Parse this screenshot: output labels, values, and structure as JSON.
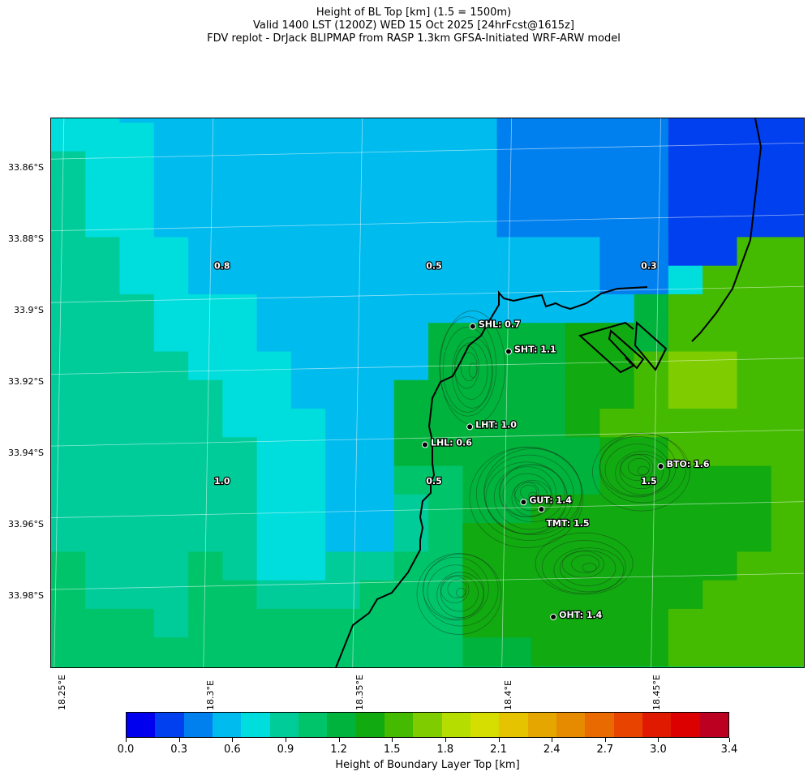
{
  "title": {
    "line1": "Height of BL Top [km] (1.5 = 1500m)",
    "line2": "Valid 1400 LST (1200Z) WED 15 Oct 2025 [24hrFcst@1615z]",
    "line3": "FDV replot - DrJack BLIPMAP from RASP 1.3km GFSA-Initiated WRF-ARW model"
  },
  "map": {
    "lat_labels": [
      "33.86°S",
      "33.88°S",
      "33.9°S",
      "33.92°S",
      "33.94°S",
      "33.96°S",
      "33.98°S"
    ],
    "lon_labels": [
      "18.25°E",
      "18.3°E",
      "18.35°E",
      "18.4°E",
      "18.45°E"
    ],
    "grid_values_km": [
      [
        0.8,
        0.8,
        0.6,
        0.6,
        0.6,
        0.6,
        0.6,
        0.6,
        0.5,
        0.5,
        0.5,
        0.5,
        0.5,
        0.4,
        0.4,
        0.4,
        0.4,
        0.4,
        0.2,
        0.2,
        0.2,
        0.2
      ],
      [
        0.8,
        0.8,
        0.8,
        0.6,
        0.6,
        0.6,
        0.6,
        0.6,
        0.5,
        0.5,
        0.5,
        0.5,
        0.5,
        0.4,
        0.4,
        0.4,
        0.4,
        0.4,
        0.2,
        0.2,
        0.2,
        0.2
      ],
      [
        0.9,
        0.8,
        0.8,
        0.6,
        0.6,
        0.6,
        0.6,
        0.6,
        0.5,
        0.5,
        0.5,
        0.5,
        0.5,
        0.4,
        0.4,
        0.4,
        0.4,
        0.4,
        0.2,
        0.2,
        0.2,
        0.2
      ],
      [
        0.9,
        0.8,
        0.8,
        0.6,
        0.6,
        0.6,
        0.6,
        0.6,
        0.5,
        0.5,
        0.5,
        0.5,
        0.5,
        0.4,
        0.4,
        0.4,
        0.4,
        0.4,
        0.2,
        0.2,
        0.2,
        0.2
      ],
      [
        0.9,
        0.8,
        0.8,
        0.6,
        0.6,
        0.6,
        0.6,
        0.6,
        0.5,
        0.5,
        0.5,
        0.5,
        0.5,
        0.4,
        0.4,
        0.4,
        0.4,
        0.4,
        0.2,
        0.2,
        0.2,
        0.2
      ],
      [
        0.9,
        0.9,
        0.8,
        0.8,
        0.6,
        0.6,
        0.6,
        0.6,
        0.5,
        0.5,
        0.5,
        0.5,
        0.5,
        0.5,
        0.5,
        0.5,
        0.4,
        0.4,
        0.2,
        0.2,
        1.5,
        1.5
      ],
      [
        0.9,
        0.9,
        0.8,
        0.8,
        0.6,
        0.6,
        0.6,
        0.6,
        0.5,
        0.5,
        0.5,
        0.5,
        0.5,
        0.5,
        0.5,
        0.5,
        0.4,
        0.4,
        0.7,
        1.5,
        1.5,
        1.5
      ],
      [
        0.9,
        0.9,
        0.9,
        0.8,
        0.8,
        0.8,
        0.6,
        0.6,
        0.5,
        0.5,
        0.5,
        0.5,
        0.5,
        0.5,
        0.5,
        0.5,
        0.6,
        1.2,
        1.5,
        1.5,
        1.5,
        1.5
      ],
      [
        0.9,
        0.9,
        0.9,
        0.8,
        0.8,
        0.8,
        0.6,
        0.6,
        0.5,
        0.5,
        0.5,
        1.2,
        1.2,
        1.2,
        1.2,
        1.4,
        1.4,
        1.2,
        1.5,
        1.5,
        1.5,
        1.5
      ],
      [
        0.9,
        0.9,
        0.9,
        0.9,
        0.8,
        0.8,
        0.8,
        0.6,
        0.6,
        0.5,
        0.5,
        1.2,
        1.2,
        1.2,
        1.2,
        1.4,
        1.4,
        1.5,
        1.7,
        1.7,
        1.5,
        1.5
      ],
      [
        0.9,
        0.9,
        0.9,
        0.9,
        0.9,
        0.8,
        0.8,
        0.6,
        0.6,
        0.5,
        1.2,
        1.2,
        1.2,
        1.2,
        1.2,
        1.4,
        1.4,
        1.5,
        1.7,
        1.7,
        1.5,
        1.5
      ],
      [
        0.9,
        0.9,
        0.9,
        0.9,
        0.9,
        0.8,
        0.8,
        0.8,
        0.6,
        0.5,
        1.2,
        1.2,
        1.2,
        1.2,
        1.2,
        1.4,
        1.5,
        1.5,
        1.5,
        1.5,
        1.5,
        1.5
      ],
      [
        0.9,
        0.9,
        0.9,
        0.9,
        0.9,
        0.9,
        0.8,
        0.8,
        0.6,
        0.5,
        1.2,
        1.2,
        1.2,
        1.2,
        1.2,
        1.2,
        1.4,
        1.4,
        1.5,
        1.5,
        1.5,
        1.5
      ],
      [
        0.9,
        0.9,
        0.9,
        0.9,
        0.9,
        0.9,
        0.8,
        0.8,
        0.6,
        0.5,
        1.1,
        1.1,
        1.2,
        1.2,
        1.2,
        1.2,
        1.4,
        1.4,
        1.4,
        1.4,
        1.4,
        1.5
      ],
      [
        0.9,
        0.9,
        0.9,
        0.9,
        0.9,
        0.9,
        0.8,
        0.8,
        0.6,
        0.6,
        0.9,
        1.1,
        1.2,
        1.2,
        1.4,
        1.4,
        1.4,
        1.4,
        1.4,
        1.4,
        1.4,
        1.5
      ],
      [
        0.9,
        0.9,
        0.9,
        0.9,
        0.9,
        0.9,
        0.8,
        0.8,
        0.6,
        0.6,
        0.9,
        1.1,
        1.4,
        1.4,
        1.4,
        1.4,
        1.4,
        1.4,
        1.4,
        1.4,
        1.4,
        1.5
      ],
      [
        1.1,
        0.9,
        0.9,
        0.9,
        1.1,
        0.9,
        0.8,
        0.8,
        0.9,
        0.9,
        1.1,
        1.1,
        1.4,
        1.4,
        1.4,
        1.4,
        1.4,
        1.4,
        1.4,
        1.4,
        1.5,
        1.5
      ],
      [
        1.1,
        0.9,
        0.9,
        0.9,
        1.1,
        1.1,
        0.9,
        0.9,
        0.9,
        1.1,
        1.1,
        1.1,
        1.4,
        1.4,
        1.4,
        1.4,
        1.4,
        1.4,
        1.4,
        1.5,
        1.5,
        1.5
      ],
      [
        1.1,
        1.1,
        1.1,
        0.9,
        1.1,
        1.1,
        1.1,
        1.1,
        1.1,
        1.1,
        1.1,
        1.1,
        1.4,
        1.4,
        1.4,
        1.4,
        1.4,
        1.4,
        1.5,
        1.5,
        1.5,
        1.5
      ],
      [
        1.1,
        1.1,
        1.1,
        1.1,
        1.1,
        1.1,
        1.1,
        1.1,
        1.1,
        1.1,
        1.1,
        1.1,
        1.2,
        1.2,
        1.4,
        1.4,
        1.4,
        1.4,
        1.5,
        1.5,
        1.5,
        1.5
      ]
    ],
    "cell_labels": [
      {
        "text": "0.8",
        "lon": 18.303,
        "lat": -33.891
      },
      {
        "text": "0.5",
        "lon": 18.374,
        "lat": -33.891
      },
      {
        "text": "0.3",
        "lon": 18.446,
        "lat": -33.891
      },
      {
        "text": "1.0",
        "lon": 18.303,
        "lat": -33.951
      },
      {
        "text": "0.5",
        "lon": 18.374,
        "lat": -33.951
      },
      {
        "text": "1.5",
        "lon": 18.446,
        "lat": -33.951
      }
    ],
    "sites": [
      {
        "code": "SHL",
        "value": "0.7",
        "lon": 18.387,
        "lat": -33.908
      },
      {
        "code": "SHT",
        "value": "1.1",
        "lon": 18.399,
        "lat": -33.915
      },
      {
        "code": "LHT",
        "value": "1.0",
        "lon": 18.386,
        "lat": -33.936
      },
      {
        "code": "LHL",
        "value": "0.6",
        "lon": 18.371,
        "lat": -33.941
      },
      {
        "code": "BTO",
        "value": "1.6",
        "lon": 18.45,
        "lat": -33.947
      },
      {
        "code": "GUT",
        "value": "1.4",
        "lon": 18.404,
        "lat": -33.957
      },
      {
        "code": "TMT",
        "value": "1.5",
        "lon": 18.41,
        "lat": -33.959
      },
      {
        "code": "OHT",
        "value": "1.4",
        "lon": 18.414,
        "lat": -33.989
      }
    ]
  },
  "colorbar": {
    "label": "Height of Boundary Layer Top [km]",
    "min": 0.0,
    "max": 3.4,
    "tick_labels": [
      "0.0",
      "0.3",
      "0.6",
      "0.9",
      "1.2",
      "1.5",
      "1.8",
      "2.1",
      "2.4",
      "2.7",
      "3.0",
      "3.4"
    ],
    "colors": [
      "#0000ee",
      "#0040ee",
      "#0080ee",
      "#00bbee",
      "#00dddd",
      "#00cc9a",
      "#00c46a",
      "#00b33c",
      "#11aa11",
      "#44bb00",
      "#7fcc00",
      "#b5dd00",
      "#d6dd00",
      "#e6c300",
      "#e6a600",
      "#e68a00",
      "#e86a00",
      "#e84400",
      "#e01a00",
      "#dd0000",
      "#bb0022"
    ]
  }
}
